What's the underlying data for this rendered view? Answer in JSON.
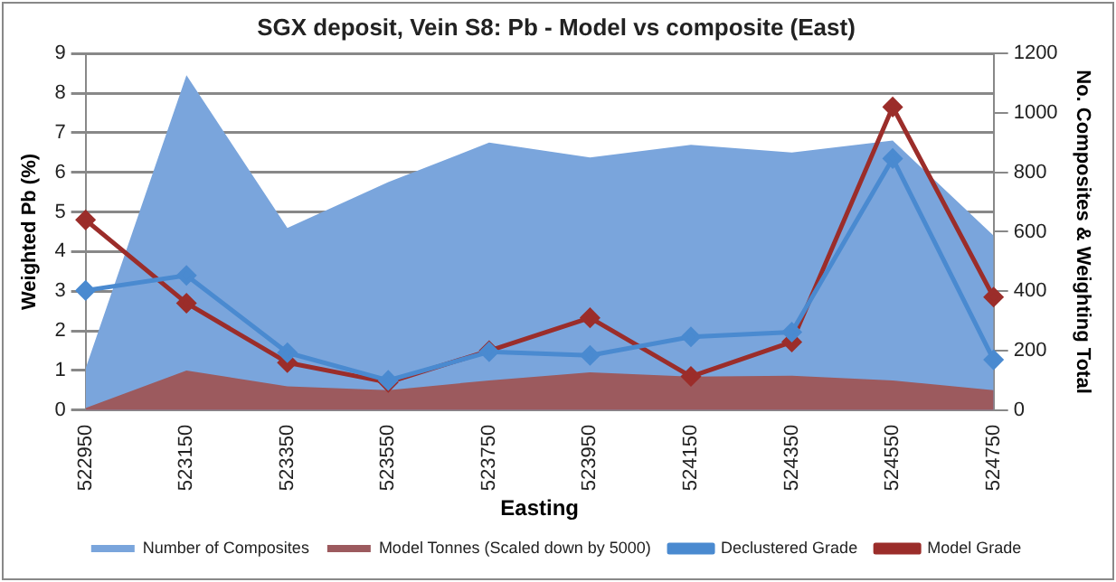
{
  "chart_data": {
    "type": "line",
    "title": "SGX deposit, Vein S8: Pb - Model vs composite (East)",
    "xlabel": "Easting",
    "ylabel": "Weighted Pb (%)",
    "y2label": "No. Composites & Weighting Total",
    "categories": [
      "522950",
      "523150",
      "523350",
      "523550",
      "523750",
      "523950",
      "524150",
      "524350",
      "524550",
      "524750"
    ],
    "series": [
      {
        "name": "Number of Composites",
        "type": "area",
        "axis": "y2",
        "color": "#7aa5dc",
        "values": [
          140,
          1127,
          613,
          767,
          900,
          850,
          893,
          867,
          907,
          587
        ]
      },
      {
        "name": "Model Tonnes (Scaled down by 5000)",
        "type": "area",
        "axis": "y2",
        "color": "#9c5a5e",
        "values": [
          7,
          133,
          80,
          67,
          100,
          127,
          113,
          116,
          100,
          67
        ]
      },
      {
        "name": "Declustered Grade",
        "marker": "diamond",
        "color": "#4a8ad0",
        "values": [
          3.02,
          3.4,
          1.45,
          0.75,
          1.47,
          1.38,
          1.85,
          1.97,
          6.35,
          1.27
        ]
      },
      {
        "name": "Model Grade",
        "marker": "diamond",
        "color": "#9b2d2a",
        "values": [
          4.8,
          2.7,
          1.2,
          0.7,
          1.5,
          2.33,
          0.85,
          1.72,
          7.65,
          2.85
        ]
      }
    ],
    "ylim": [
      0,
      9
    ],
    "yticks": [
      0,
      1,
      2,
      3,
      4,
      5,
      6,
      7,
      8,
      9
    ],
    "y2lim": [
      0,
      1200
    ],
    "y2ticks": [
      0,
      200,
      400,
      600,
      800,
      1000,
      1200
    ],
    "grid": "y",
    "legend": "bottom"
  }
}
